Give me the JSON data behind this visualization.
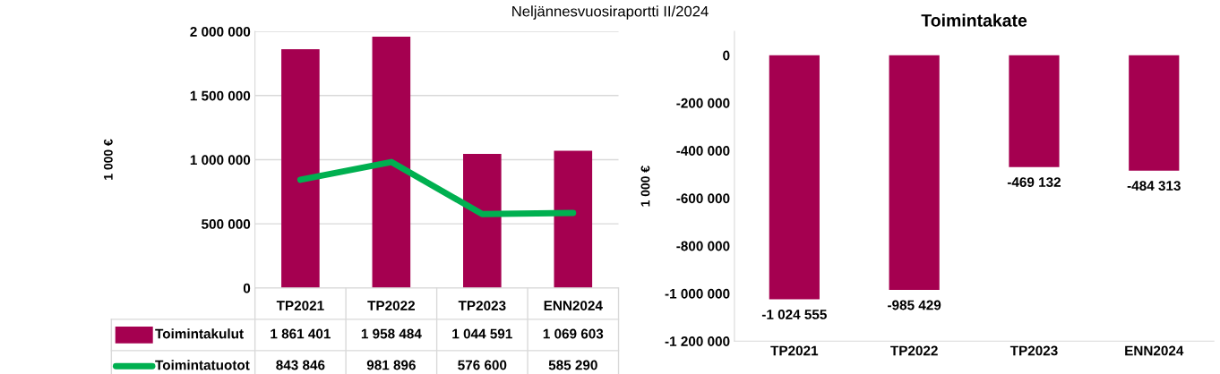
{
  "chart_data": [
    {
      "type": "bar",
      "annotations": [
        "Neljännesvuosiraportti II/2024"
      ],
      "ylabel": "1 000 €",
      "categories": [
        "TP2021",
        "TP2022",
        "TP2023",
        "ENN2024"
      ],
      "series": [
        {
          "name": "Toimintakulut",
          "type": "bar",
          "color": "#a50050",
          "values": [
            1861401,
            1958484,
            1044591,
            1069603
          ],
          "value_labels": [
            "1 861 401",
            "1 958 484",
            "1 044 591",
            "1 069 603"
          ]
        },
        {
          "name": "Toimintatuotot",
          "type": "line",
          "color": "#00b050",
          "values": [
            843846,
            981896,
            576600,
            585290
          ],
          "value_labels": [
            "843 846",
            "981 896",
            "576 600",
            "585 290"
          ]
        }
      ],
      "ylim": [
        0,
        2000000
      ],
      "yticks": [
        0,
        {
          "value": 500000,
          "label": "500 000"
        },
        {
          "value": 1000000,
          "label": "1 000 000"
        },
        {
          "value": 1500000,
          "label": "1 500 000"
        },
        {
          "value": 2000000,
          "label": "2 000 000"
        }
      ],
      "grid": "y",
      "legend": "bottom",
      "marker": "none",
      "line_style": "solid"
    },
    {
      "type": "bar",
      "title": "Toimintakate",
      "ylabel": "1 000 €",
      "categories": [
        "TP2021",
        "TP2022",
        "TP2023",
        "ENN2024"
      ],
      "series": [
        {
          "color": "#a50050",
          "values": [
            -1024555,
            -985429,
            -469132,
            -484313
          ],
          "value_labels": [
            "-1 024 555",
            "-985 429",
            "-469 132",
            "-484 313"
          ]
        }
      ],
      "ylim": [
        -1200000,
        100000
      ],
      "yticks": [
        {
          "value": -1200000,
          "label": "-1 200 000"
        },
        {
          "value": -1000000,
          "label": "-1 000 000"
        },
        {
          "value": -800000,
          "label": "-800 000"
        },
        {
          "value": -600000,
          "label": "-600 000"
        },
        {
          "value": -400000,
          "label": "-400 000"
        },
        {
          "value": -200000,
          "label": "-200 000"
        },
        0
      ],
      "grid": false
    }
  ]
}
